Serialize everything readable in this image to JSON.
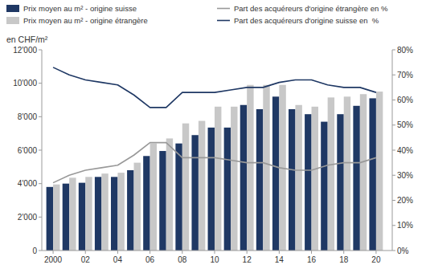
{
  "chart_data": {
    "type": "bar",
    "y_label": "en CHF/m²",
    "x": [
      2000,
      2001,
      2002,
      2003,
      2004,
      2005,
      2006,
      2007,
      2008,
      2009,
      2010,
      2011,
      2012,
      2013,
      2014,
      2015,
      2016,
      2017,
      2018,
      2019,
      2020
    ],
    "xlim": [
      1999.3,
      2021.0
    ],
    "xticks": [
      2000,
      {
        "value": 2002,
        "label": "02"
      },
      {
        "value": 2004,
        "label": "04"
      },
      {
        "value": 2006,
        "label": "06"
      },
      {
        "value": 2008,
        "label": "08"
      },
      {
        "value": 2010,
        "label": "10"
      },
      {
        "value": 2012,
        "label": "12"
      },
      {
        "value": 2014,
        "label": "14"
      },
      {
        "value": 2016,
        "label": "16"
      },
      {
        "value": 2018,
        "label": "18"
      },
      {
        "value": 2020,
        "label": "20"
      }
    ],
    "ylim": [
      0,
      12000
    ],
    "yticks": [
      0,
      {
        "value": 2000,
        "label": "2'000"
      },
      {
        "value": 4000,
        "label": "4'000"
      },
      {
        "value": 6000,
        "label": "6'000"
      },
      {
        "value": 8000,
        "label": "8'000"
      },
      {
        "value": 10000,
        "label": "10'000"
      },
      {
        "value": 12000,
        "label": "12'000"
      }
    ],
    "y2lim": [
      0,
      0.8
    ],
    "y2ticks": [
      {
        "value": 0.0,
        "label": "0%"
      },
      {
        "value": 0.1,
        "label": "10%"
      },
      {
        "value": 0.2,
        "label": "20%"
      },
      {
        "value": 0.3,
        "label": "30%"
      },
      {
        "value": 0.4,
        "label": "40%"
      },
      {
        "value": 0.5,
        "label": "50%"
      },
      {
        "value": 0.6,
        "label": "60%"
      },
      {
        "value": 0.7,
        "label": "70%"
      },
      {
        "value": 0.8,
        "label": "80%"
      }
    ],
    "grid": false,
    "legend": "upper left",
    "series": [
      {
        "name": "Prix moyen au m² - origine suisse",
        "type": "bar",
        "color": "#1f3864",
        "values": [
          3800,
          4000,
          4050,
          4400,
          4400,
          4800,
          5650,
          5950,
          6400,
          6900,
          7350,
          7350,
          8700,
          8450,
          9200,
          8450,
          8150,
          7700,
          8150,
          8650,
          9100
        ]
      },
      {
        "name": "Prix moyen au m² - origine étrangère",
        "type": "bar",
        "color": "#c8c8c8",
        "values": [
          3950,
          4350,
          4400,
          4600,
          4650,
          5250,
          6400,
          6700,
          7600,
          7750,
          8600,
          8600,
          9900,
          9900,
          9900,
          8700,
          8600,
          9150,
          9200,
          9350,
          9500
        ]
      },
      {
        "name": "Part des acquéreurs d'origine étrangère en %",
        "type": "line",
        "axis": "y2",
        "color": "#999999",
        "values": [
          0.27,
          0.3,
          0.32,
          0.33,
          0.34,
          0.38,
          0.43,
          0.43,
          0.37,
          0.37,
          0.37,
          0.36,
          0.35,
          0.35,
          0.33,
          0.32,
          0.32,
          0.34,
          0.35,
          0.35,
          0.37
        ]
      },
      {
        "name": "Part des acquéreurs d'origine suisse en  %",
        "type": "line",
        "axis": "y2",
        "color": "#1f3864",
        "values": [
          0.73,
          0.7,
          0.68,
          0.67,
          0.66,
          0.62,
          0.57,
          0.57,
          0.63,
          0.63,
          0.63,
          0.64,
          0.65,
          0.65,
          0.67,
          0.68,
          0.68,
          0.66,
          0.65,
          0.65,
          0.63
        ]
      }
    ]
  }
}
